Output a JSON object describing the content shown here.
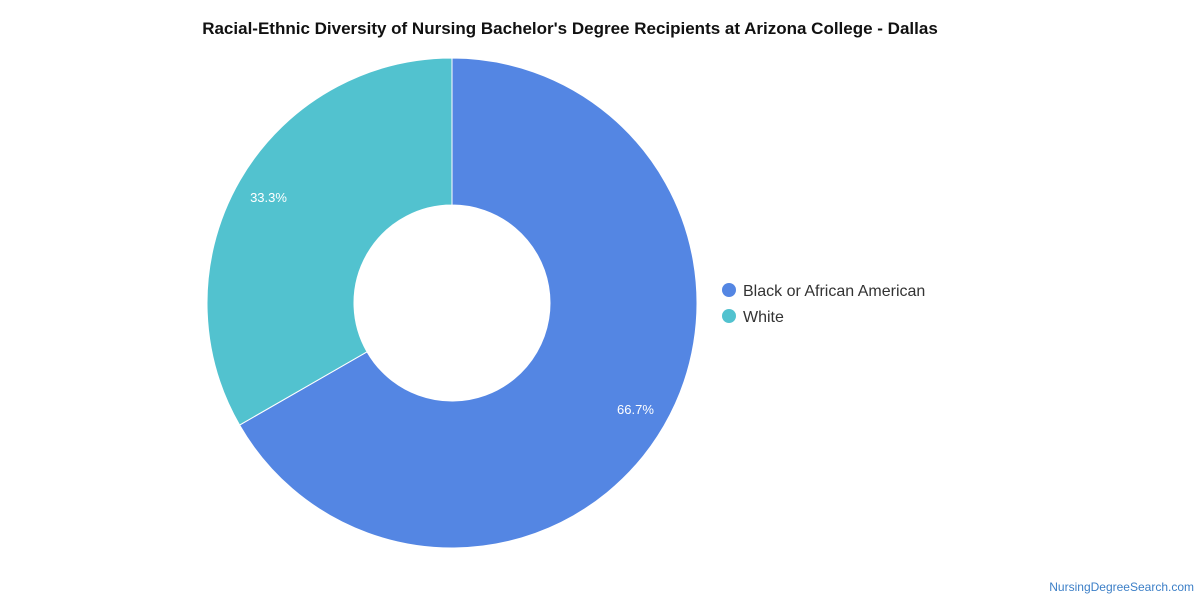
{
  "chart_data": {
    "type": "pie",
    "title": "Racial-Ethnic Diversity of Nursing Bachelor's Degree Recipients at Arizona College - Dallas",
    "categories": [
      "Black or African American",
      "White"
    ],
    "values": [
      66.7,
      33.3
    ],
    "labels": [
      "66.7%",
      "33.3%"
    ],
    "colors": [
      "#5486e3",
      "#52c2cf"
    ],
    "donut": true,
    "start_angle": "12 o'clock",
    "direction": "clockwise",
    "legend": "right"
  },
  "footer": {
    "source": "NursingDegreeSearch.com"
  }
}
